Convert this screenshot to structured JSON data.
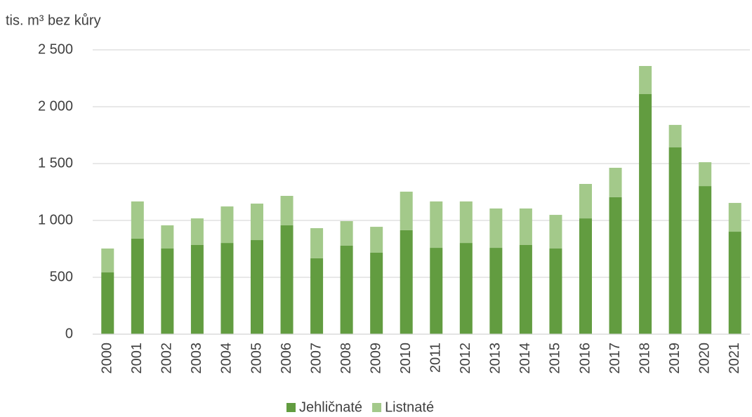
{
  "chart_data": {
    "type": "stacked_bar",
    "y_axis_label": "tis. m³ bez kůry",
    "categories": [
      "2000",
      "2001",
      "2002",
      "2003",
      "2004",
      "2005",
      "2006",
      "2007",
      "2008",
      "2009",
      "2010",
      "2011",
      "2012",
      "2013",
      "2014",
      "2015",
      "2016",
      "2017",
      "2018",
      "2019",
      "2020",
      "2021"
    ],
    "series": [
      {
        "name": "Jehličnaté",
        "color": "#629c40",
        "values": [
          543,
          840,
          753,
          784,
          802,
          827,
          957,
          667,
          778,
          716,
          914,
          759,
          802,
          759,
          784,
          753,
          1018,
          1204,
          2111,
          1642,
          1302,
          901
        ]
      },
      {
        "name": "Listnaté",
        "color": "#a3c98a",
        "values": [
          210,
          327,
          204,
          234,
          321,
          321,
          259,
          265,
          216,
          228,
          339,
          408,
          365,
          346,
          321,
          296,
          303,
          259,
          247,
          198,
          210,
          253
        ]
      }
    ],
    "ylim": [
      0,
      2500
    ],
    "yticks": [
      0,
      500,
      {
        "value": 1000,
        "label": "1 000"
      },
      {
        "value": 1500,
        "label": "1 500"
      },
      {
        "value": 2000,
        "label": "2 000"
      },
      {
        "value": 2500,
        "label": "2 500"
      }
    ],
    "grid": true,
    "legend": "bottom"
  }
}
